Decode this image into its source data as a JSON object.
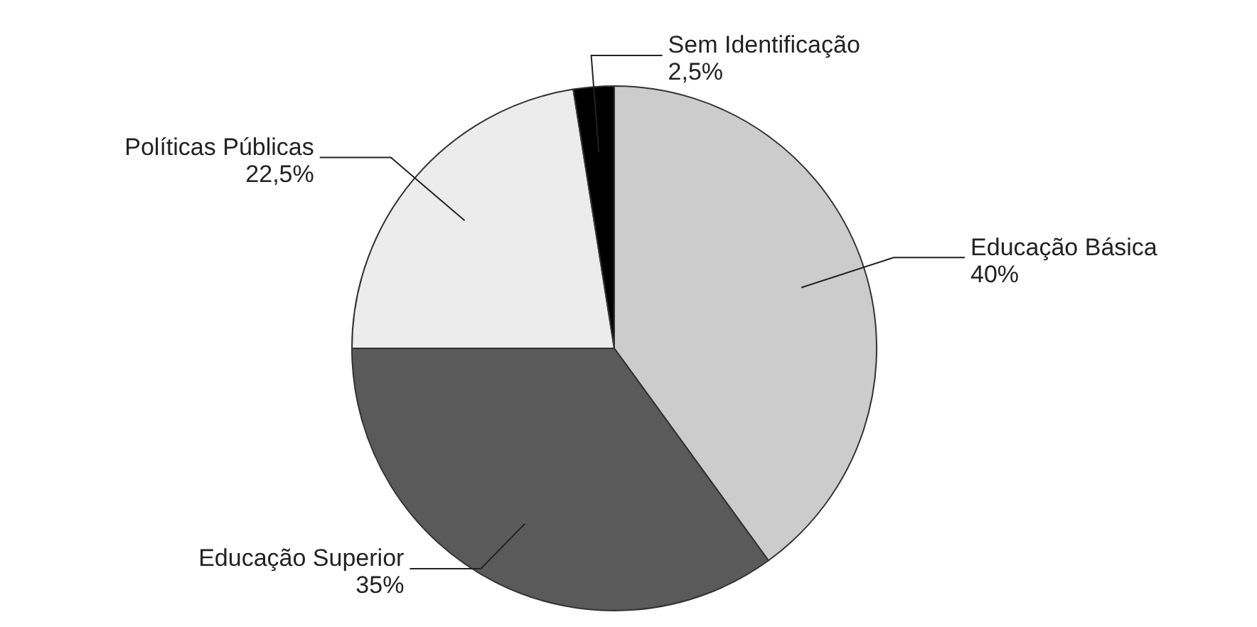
{
  "chart_data": {
    "type": "pie",
    "categories": [
      "Educação Básica",
      "Educação Superior",
      "Políticas Públicas",
      "Sem Identificação"
    ],
    "values": [
      40,
      35,
      22.5,
      2.5
    ],
    "colors": [
      "#cccccc",
      "#5a5a5a",
      "#ececec",
      "#000000"
    ],
    "value_labels": [
      "40%",
      "35%",
      "22,5%",
      "2,5%"
    ]
  }
}
